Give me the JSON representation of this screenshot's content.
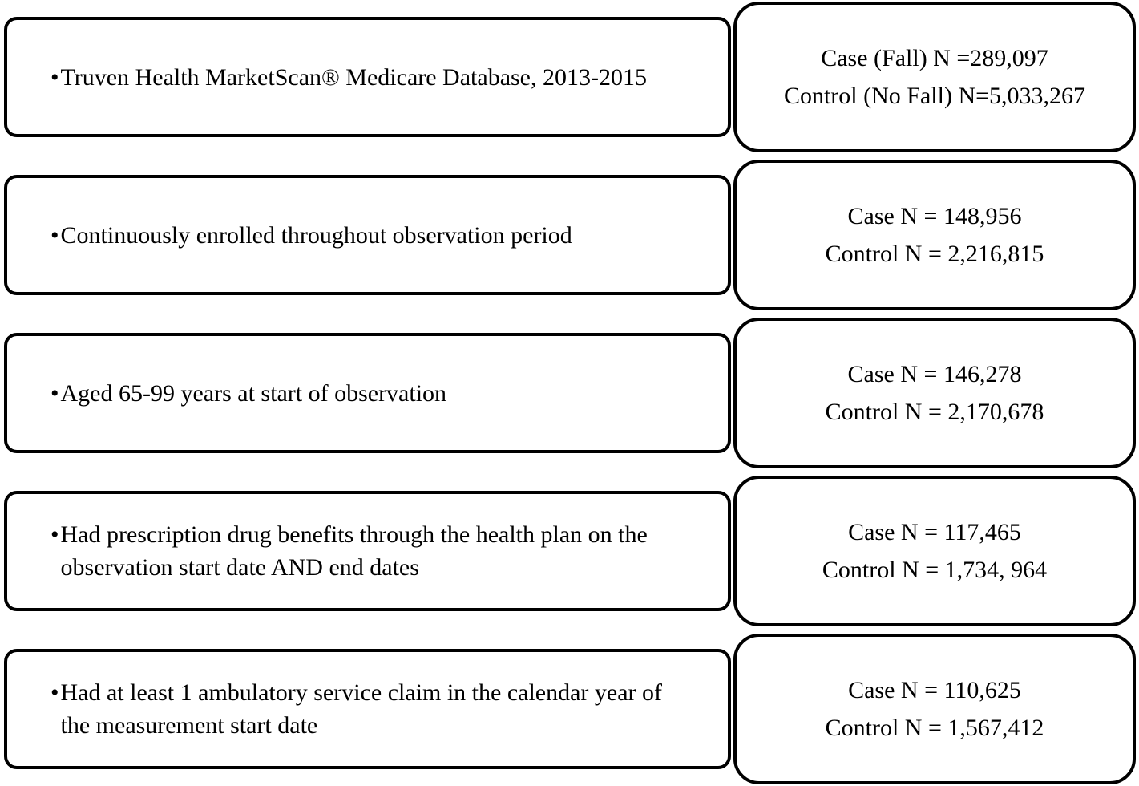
{
  "figure": {
    "type": "cohort-selection-flow-diagram",
    "bullet": "•",
    "colors": {
      "border": "#000000",
      "background": "#ffffff",
      "text": "#000000"
    },
    "rows": [
      {
        "criteria": "Truven Health MarketScan® Medicare Database, 2013-2015",
        "case_label": "Case (Fall) N =289,097",
        "control_label": "Control (No Fall) N=5,033,267"
      },
      {
        "criteria": "Continuously enrolled throughout observation period",
        "case_label": "Case N = 148,956",
        "control_label": "Control N = 2,216,815"
      },
      {
        "criteria": "Aged 65-99 years at start of observation",
        "case_label": "Case N = 146,278",
        "control_label": "Control N = 2,170,678"
      },
      {
        "criteria": "Had prescription drug benefits through the health plan on the observation start date AND end dates",
        "case_label": "Case N = 117,465",
        "control_label": "Control N = 1,734, 964"
      },
      {
        "criteria": "Had at least 1 ambulatory service claim in the calendar year of the measurement start date",
        "case_label": "Case N = 110,625",
        "control_label": "Control N = 1,567,412"
      }
    ]
  }
}
